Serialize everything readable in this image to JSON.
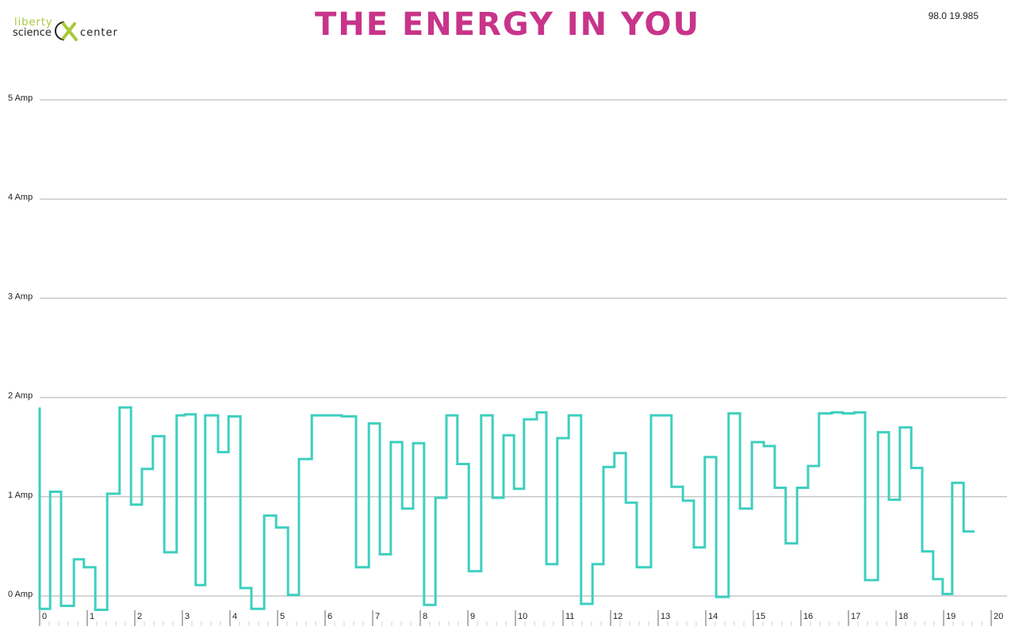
{
  "logo": {
    "top_text": "liberty",
    "left_text": "science",
    "right_text": "center",
    "top_color": "#a8c83a",
    "mark_color": "#a8c83a"
  },
  "header": {
    "title": "THE ENERGY IN YOU",
    "title_color": "#c8348a",
    "status": "98.0 19.985"
  },
  "chart_data": {
    "type": "line",
    "step": true,
    "line_color": "#3ecfbf",
    "grid_color": "#c8c8c8",
    "grid": true,
    "xlim": [
      0,
      20
    ],
    "ylim": [
      0,
      5
    ],
    "x_ticks": [
      "0",
      "1",
      "2",
      "3",
      "4",
      "5",
      "6",
      "7",
      "8",
      "9",
      "10",
      "11",
      "12",
      "13",
      "14",
      "15",
      "16",
      "17",
      "18",
      "19",
      "20"
    ],
    "y_ticks": [
      {
        "value": 0,
        "label": "0 Amp"
      },
      {
        "value": 1,
        "label": "1 Amp"
      },
      {
        "value": 2,
        "label": "2 Amp"
      },
      {
        "value": 3,
        "label": "3 Amp"
      },
      {
        "value": 4,
        "label": "4 Amp"
      },
      {
        "value": 5,
        "label": "5 Amp"
      }
    ],
    "series": [
      {
        "points": [
          [
            0.0,
            1.9
          ],
          [
            0.0,
            -0.13
          ],
          [
            0.22,
            -0.13
          ],
          [
            0.22,
            1.05
          ],
          [
            0.45,
            1.05
          ],
          [
            0.45,
            -0.1
          ],
          [
            0.72,
            -0.1
          ],
          [
            0.72,
            0.37
          ],
          [
            0.93,
            0.37
          ],
          [
            0.93,
            0.29
          ],
          [
            1.17,
            0.29
          ],
          [
            1.17,
            -0.14
          ],
          [
            1.42,
            -0.14
          ],
          [
            1.42,
            1.03
          ],
          [
            1.68,
            1.03
          ],
          [
            1.68,
            1.9
          ],
          [
            1.92,
            1.9
          ],
          [
            1.92,
            0.92
          ],
          [
            2.15,
            0.92
          ],
          [
            2.15,
            1.28
          ],
          [
            2.38,
            1.28
          ],
          [
            2.38,
            1.61
          ],
          [
            2.62,
            1.61
          ],
          [
            2.62,
            0.44
          ],
          [
            2.88,
            0.44
          ],
          [
            2.88,
            1.82
          ],
          [
            3.05,
            1.82
          ],
          [
            3.05,
            1.83
          ],
          [
            3.28,
            1.83
          ],
          [
            3.28,
            0.11
          ],
          [
            3.48,
            0.11
          ],
          [
            3.48,
            1.82
          ],
          [
            3.75,
            1.82
          ],
          [
            3.75,
            1.45
          ],
          [
            3.97,
            1.45
          ],
          [
            3.97,
            1.81
          ],
          [
            4.22,
            1.81
          ],
          [
            4.22,
            0.08
          ],
          [
            4.45,
            0.08
          ],
          [
            4.45,
            -0.13
          ],
          [
            4.72,
            -0.13
          ],
          [
            4.72,
            0.81
          ],
          [
            4.97,
            0.81
          ],
          [
            4.97,
            0.69
          ],
          [
            5.22,
            0.69
          ],
          [
            5.22,
            0.01
          ],
          [
            5.45,
            0.01
          ],
          [
            5.45,
            1.38
          ],
          [
            5.72,
            1.38
          ],
          [
            5.72,
            1.82
          ],
          [
            6.35,
            1.82
          ],
          [
            6.35,
            1.81
          ],
          [
            6.65,
            1.81
          ],
          [
            6.65,
            0.29
          ],
          [
            6.92,
            0.29
          ],
          [
            6.92,
            1.74
          ],
          [
            7.15,
            1.74
          ],
          [
            7.15,
            0.42
          ],
          [
            7.38,
            0.42
          ],
          [
            7.38,
            1.55
          ],
          [
            7.62,
            1.55
          ],
          [
            7.62,
            0.88
          ],
          [
            7.85,
            0.88
          ],
          [
            7.85,
            1.54
          ],
          [
            8.08,
            1.54
          ],
          [
            8.08,
            -0.09
          ],
          [
            8.32,
            -0.09
          ],
          [
            8.32,
            0.99
          ],
          [
            8.55,
            0.99
          ],
          [
            8.55,
            1.82
          ],
          [
            8.78,
            1.82
          ],
          [
            8.78,
            1.33
          ],
          [
            9.02,
            1.33
          ],
          [
            9.02,
            0.25
          ],
          [
            9.28,
            0.25
          ],
          [
            9.28,
            1.82
          ],
          [
            9.52,
            1.82
          ],
          [
            9.52,
            0.99
          ],
          [
            9.75,
            0.99
          ],
          [
            9.75,
            1.62
          ],
          [
            9.97,
            1.62
          ],
          [
            9.97,
            1.08
          ],
          [
            10.18,
            1.08
          ],
          [
            10.18,
            1.78
          ],
          [
            10.45,
            1.78
          ],
          [
            10.45,
            1.85
          ],
          [
            10.65,
            1.85
          ],
          [
            10.65,
            0.32
          ],
          [
            10.88,
            0.32
          ],
          [
            10.88,
            1.59
          ],
          [
            11.12,
            1.59
          ],
          [
            11.12,
            1.82
          ],
          [
            11.38,
            1.82
          ],
          [
            11.38,
            -0.08
          ],
          [
            11.62,
            -0.08
          ],
          [
            11.62,
            0.32
          ],
          [
            11.85,
            0.32
          ],
          [
            11.85,
            1.3
          ],
          [
            12.08,
            1.3
          ],
          [
            12.08,
            1.44
          ],
          [
            12.32,
            1.44
          ],
          [
            12.32,
            0.94
          ],
          [
            12.55,
            0.94
          ],
          [
            12.55,
            0.29
          ],
          [
            12.85,
            0.29
          ],
          [
            12.85,
            1.82
          ],
          [
            13.28,
            1.82
          ],
          [
            13.28,
            1.1
          ],
          [
            13.52,
            1.1
          ],
          [
            13.52,
            0.96
          ],
          [
            13.75,
            0.96
          ],
          [
            13.75,
            0.49
          ],
          [
            13.98,
            0.49
          ],
          [
            13.98,
            1.4
          ],
          [
            14.22,
            1.4
          ],
          [
            14.22,
            -0.01
          ],
          [
            14.48,
            -0.01
          ],
          [
            14.48,
            1.84
          ],
          [
            14.72,
            1.84
          ],
          [
            14.72,
            0.88
          ],
          [
            14.97,
            0.88
          ],
          [
            14.97,
            1.55
          ],
          [
            15.22,
            1.55
          ],
          [
            15.22,
            1.51
          ],
          [
            15.45,
            1.51
          ],
          [
            15.45,
            1.09
          ],
          [
            15.68,
            1.09
          ],
          [
            15.68,
            0.53
          ],
          [
            15.92,
            0.53
          ],
          [
            15.92,
            1.09
          ],
          [
            16.15,
            1.09
          ],
          [
            16.15,
            1.31
          ],
          [
            16.38,
            1.31
          ],
          [
            16.38,
            1.84
          ],
          [
            16.65,
            1.84
          ],
          [
            16.65,
            1.85
          ],
          [
            16.88,
            1.85
          ],
          [
            16.88,
            1.84
          ],
          [
            17.12,
            1.84
          ],
          [
            17.12,
            1.85
          ],
          [
            17.35,
            1.85
          ],
          [
            17.35,
            0.16
          ],
          [
            17.62,
            0.16
          ],
          [
            17.62,
            1.65
          ],
          [
            17.85,
            1.65
          ],
          [
            17.85,
            0.97
          ],
          [
            18.08,
            0.97
          ],
          [
            18.08,
            1.7
          ],
          [
            18.32,
            1.7
          ],
          [
            18.32,
            1.29
          ],
          [
            18.55,
            1.29
          ],
          [
            18.55,
            0.45
          ],
          [
            18.78,
            0.45
          ],
          [
            18.78,
            0.17
          ],
          [
            18.98,
            0.17
          ],
          [
            18.98,
            0.02
          ],
          [
            19.18,
            0.02
          ],
          [
            19.18,
            1.14
          ],
          [
            19.42,
            1.14
          ],
          [
            19.42,
            0.65
          ],
          [
            19.65,
            0.65
          ]
        ]
      }
    ]
  }
}
